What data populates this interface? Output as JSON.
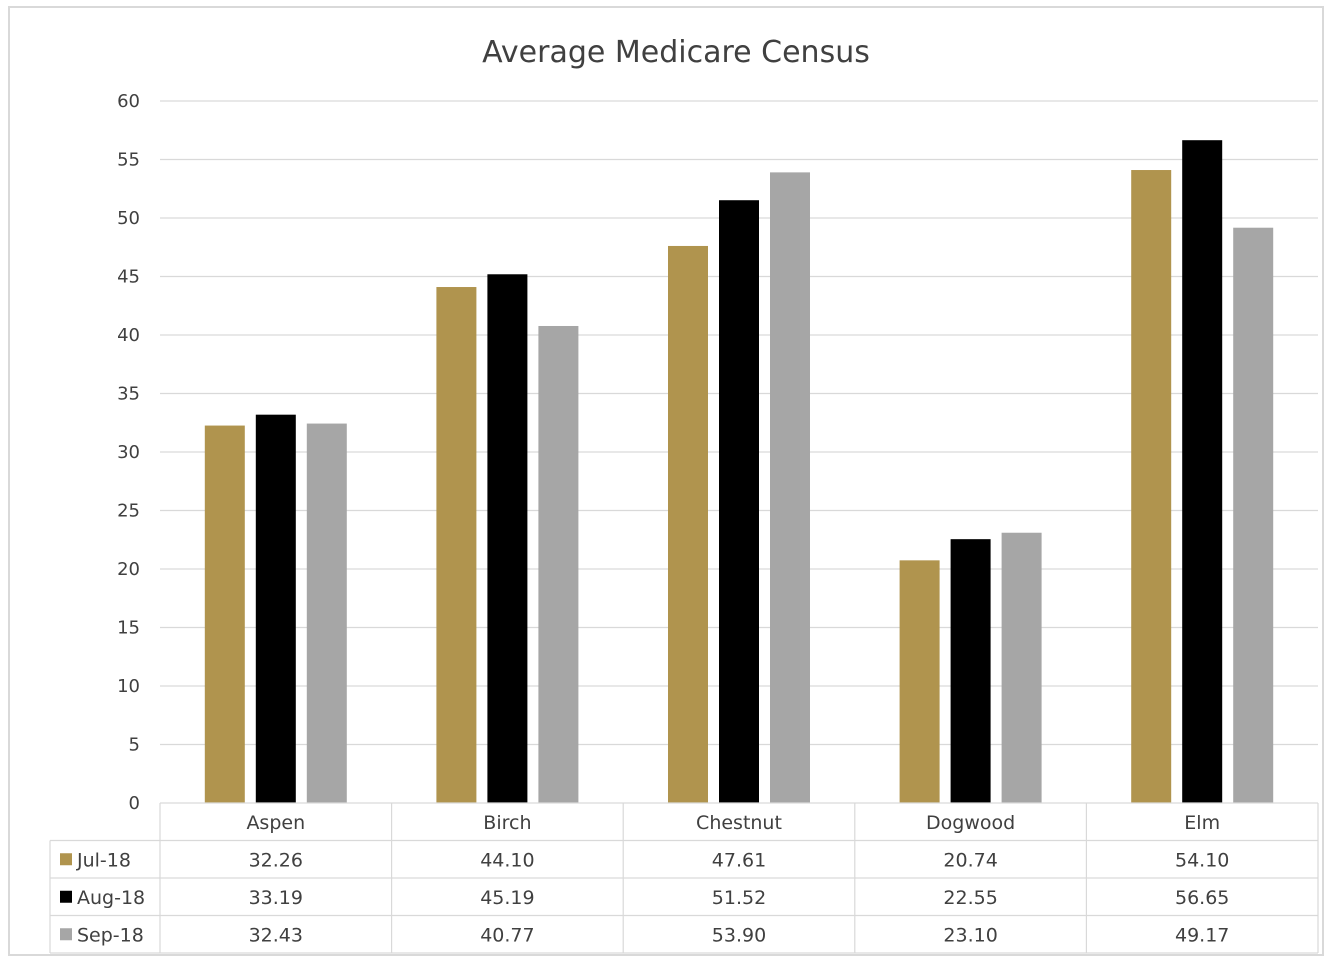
{
  "chart_data": {
    "type": "bar",
    "title": "Average Medicare Census",
    "categories": [
      "Aspen",
      "Birch",
      "Chestnut",
      "Dogwood",
      "Elm"
    ],
    "series": [
      {
        "name": "Jul-18",
        "color": "#b0944e",
        "values": [
          32.26,
          44.1,
          47.61,
          20.74,
          54.1
        ],
        "labels": [
          "32.26",
          "44.10",
          "47.61",
          "20.74",
          "54.10"
        ]
      },
      {
        "name": "Aug-18",
        "color": "#000000",
        "values": [
          33.19,
          45.19,
          51.52,
          22.55,
          56.65
        ],
        "labels": [
          "33.19",
          "45.19",
          "51.52",
          "22.55",
          "56.65"
        ]
      },
      {
        "name": "Sep-18",
        "color": "#a6a6a6",
        "values": [
          32.43,
          40.77,
          53.9,
          23.1,
          49.17
        ],
        "labels": [
          "32.43",
          "40.77",
          "53.90",
          "23.10",
          "49.17"
        ]
      }
    ],
    "ylim": [
      0,
      60
    ],
    "yticks": [
      0,
      5,
      10,
      15,
      20,
      25,
      30,
      35,
      40,
      45,
      50,
      55,
      60
    ],
    "grid": true,
    "legend": "data-table"
  }
}
